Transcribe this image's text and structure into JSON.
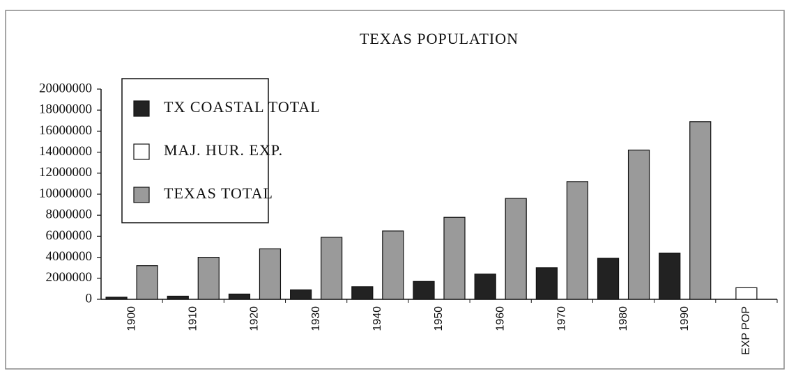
{
  "chart_data": {
    "type": "bar",
    "title": "TEXAS POPULATION",
    "categories": [
      "1900",
      "1910",
      "1920",
      "1930",
      "1940",
      "1950",
      "1960",
      "1970",
      "1980",
      "1990",
      "EXP POP"
    ],
    "series": [
      {
        "name": "TX COASTAL TOTAL",
        "color": "#222222",
        "values": [
          200000,
          300000,
          500000,
          900000,
          1200000,
          1700000,
          2400000,
          3000000,
          3900000,
          4400000,
          null
        ]
      },
      {
        "name": "MAJ. HUR. EXP.",
        "color": "#ffffff",
        "values": [
          null,
          null,
          null,
          null,
          null,
          null,
          null,
          null,
          null,
          null,
          1100000
        ]
      },
      {
        "name": "TEXAS TOTAL",
        "color": "#9a9a9a",
        "values": [
          3200000,
          4000000,
          4800000,
          5900000,
          6500000,
          7800000,
          9600000,
          11200000,
          14200000,
          16900000,
          null
        ]
      }
    ],
    "ylim": [
      0,
      20000000
    ],
    "yticks": [
      0,
      2000000,
      4000000,
      6000000,
      8000000,
      10000000,
      12000000,
      14000000,
      16000000,
      18000000,
      20000000
    ],
    "grid": false,
    "legend": "upper left"
  }
}
